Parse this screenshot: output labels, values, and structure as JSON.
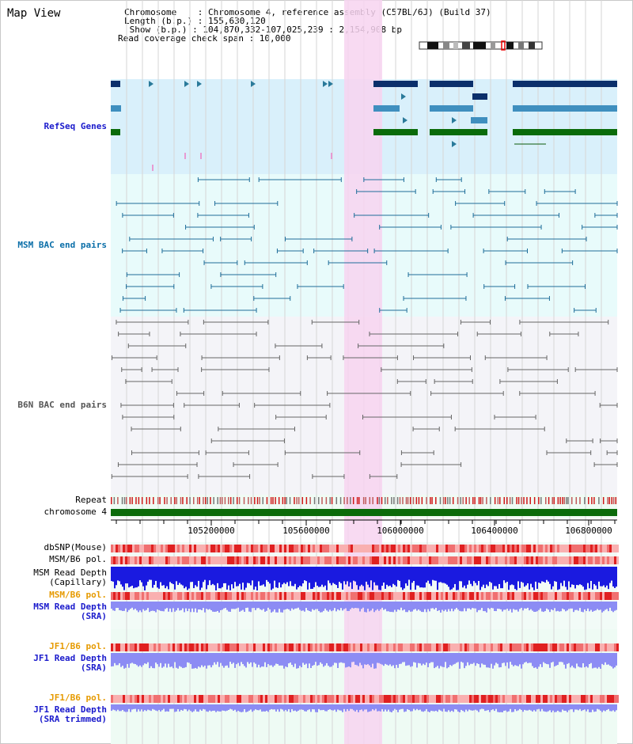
{
  "panel_title": "Map View",
  "header": {
    "chromosome_line": "Chromosome    : Chromosome 4, reference assembly (C57BL/6J) (Build 37)",
    "length_line": "Length (b.p.) : 155,630,120",
    "show_line": " Show (b.p.) : 104,870,332-107,025,239 : 2,154,908 bp",
    "coverage_line": "Read coverage check span : 10,000"
  },
  "tracks": {
    "refseq": "RefSeq Genes",
    "msm_bac": "MSM BAC end pairs",
    "b6n_bac": "B6N BAC end pairs",
    "repeat": "Repeat",
    "chromosome": "chromosome 4",
    "dbsnp": "dbSNP(Mouse)",
    "msm_b6_pol_1": "MSM/B6 pol.",
    "msm_depth_cap_1": "MSM Read Depth",
    "msm_depth_cap_2": "(Capillary)",
    "msm_b6_pol_2": "MSM/B6 pol.",
    "msm_depth_sra_1": "MSM Read Depth",
    "msm_depth_sra_2": "(SRA)",
    "jf1_b6_pol_1": "JF1/B6 pol.",
    "jf1_depth_sra_1": "JF1 Read Depth",
    "jf1_depth_sra_2": "(SRA)",
    "jf1_b6_pol_2": "JF1/B6 pol.",
    "jf1_depth_trim_1": "JF1 Read Depth",
    "jf1_depth_trim_2": "(SRA trimmed)"
  },
  "axis": {
    "ticks": [
      "105200000",
      "105600000",
      "106000000",
      "106400000",
      "106800000"
    ]
  },
  "colors": {
    "highlight": "#f7d4f0",
    "refseq_bg": "#d9f0fb",
    "msm_bg": "#e8fbfb",
    "b6n_bg": "#f4f4f8",
    "gene_dark": "#0b2f6b",
    "gene_mid": "#3f8fbf",
    "gene_green": "#0a6b0a",
    "msm_line": "#1f6e9a",
    "b6n_line": "#666666",
    "chrom_bar": "#0a6b0a",
    "depth_blue": "#1a1ae0",
    "depth_light": "#8c8cf4",
    "pol_red": "#f07070"
  }
}
